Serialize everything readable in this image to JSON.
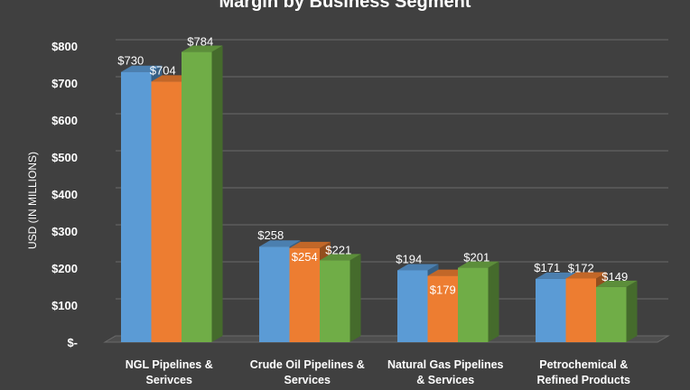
{
  "chart_data": {
    "type": "bar",
    "title": "Margin by Business Segment",
    "ylabel": "USD (IN MILLIONS)",
    "xlabel": "",
    "ylim": [
      0,
      800
    ],
    "yticks": [
      "$-",
      "$100",
      "$200",
      "$300",
      "$400",
      "$500",
      "$600",
      "$700",
      "$800"
    ],
    "categories": [
      [
        "NGL Pipelines &",
        "Serivces"
      ],
      [
        "Crude Oil Pipelines &",
        "Services"
      ],
      [
        "Natural Gas Pipelines",
        "& Services"
      ],
      [
        "Petrochemical &",
        "Refined Products"
      ]
    ],
    "series": [
      {
        "values": [
          730,
          258,
          194,
          171
        ],
        "labels": [
          "$730",
          "$258",
          "$194",
          "$171"
        ],
        "color": "#5b9bd5"
      },
      {
        "values": [
          704,
          254,
          179,
          172
        ],
        "labels": [
          "$704",
          "$254",
          "$179",
          "$172"
        ],
        "color": "#ed7d31"
      },
      {
        "values": [
          784,
          221,
          201,
          149
        ],
        "labels": [
          "$784",
          "$221",
          "$201",
          "$149"
        ],
        "color": "#70ad47"
      }
    ],
    "grid": true,
    "legend": "none"
  }
}
